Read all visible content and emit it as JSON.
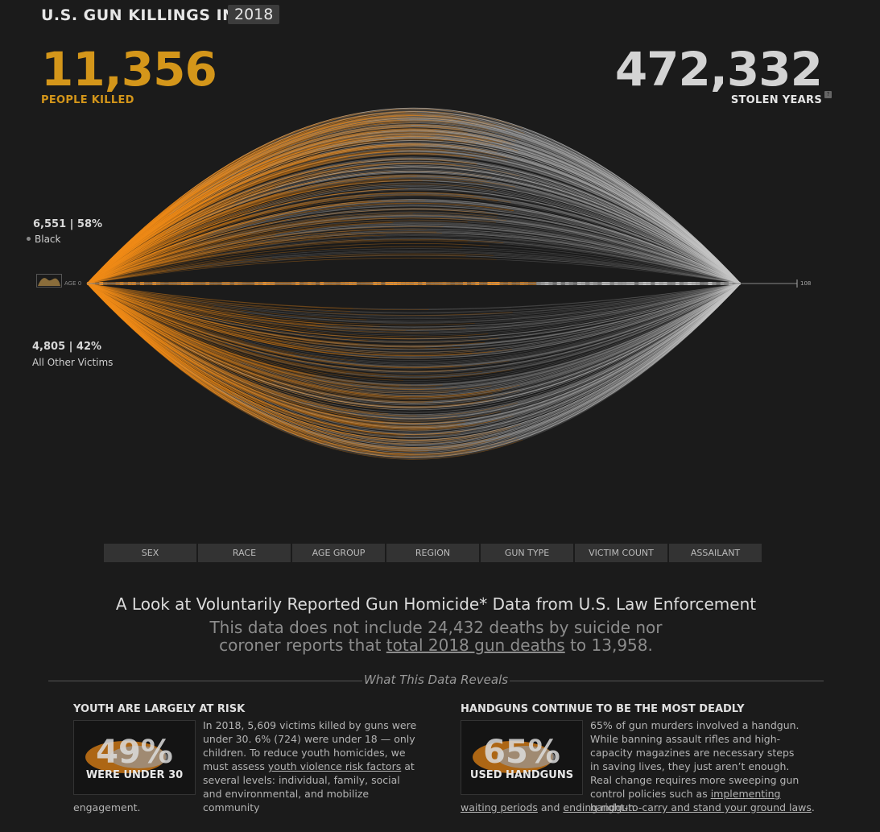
{
  "header": {
    "title": "U.S. GUN KILLINGS IN",
    "year": "2018",
    "killed_value": "11,356",
    "killed_label": "PEOPLE KILLED",
    "stolen_value": "472,332",
    "stolen_label": "STOLEN YEARS",
    "help_icon": "?"
  },
  "chart_data": {
    "type": "area",
    "axis": {
      "start_label": "AGE 0",
      "end_label": "108",
      "min": 0,
      "max": 108
    },
    "groups": [
      {
        "count_label": "6,551 | 58%",
        "name": "Black",
        "count": 6551,
        "percent": 58
      },
      {
        "count_label": "4,805 | 42%",
        "name": "All Other Victims",
        "count": 4805,
        "percent": 42
      }
    ],
    "colors": {
      "lived": "#f28c1a",
      "stolen": "#c8c8c8",
      "background": "#1b1b1b"
    }
  },
  "tabs": [
    "SEX",
    "RACE",
    "AGE GROUP",
    "REGION",
    "GUN TYPE",
    "VICTIM COUNT",
    "ASSAILANT"
  ],
  "intro": {
    "heading": "A Look at Voluntarily Reported Gun Homicide* Data from U.S. Law Enforcement",
    "sub_before": "This data does not include 24,432 deaths by suicide nor",
    "sub_line2_before": "coroner reports that ",
    "sub_link": "total 2018 gun deaths",
    "sub_after": " to 13,958."
  },
  "reveals_title": "What This Data Reveals",
  "columns": [
    {
      "title": "YOUTH ARE LARGELY AT RISK",
      "percent": "49%",
      "percent_label": "WERE UNDER 30",
      "text_before": "In 2018, 5,609 victims killed by guns were under 30. 6% (724) were under 18 — only children. To reduce youth homicides, we must assess ",
      "link1": "youth violence risk factors",
      "text_mid": " at several levels: individual, family, social and environmental, and mobilize community",
      "text_cont": "engagement."
    },
    {
      "title": "HANDGUNS CONTINUE TO BE THE MOST DEADLY",
      "percent": "65%",
      "percent_label": "USED HANDGUNS",
      "text_before": "65% of gun murders involved a handgun. While banning assault rifles and high-capacity magazines are necessary steps in saving lives, they just aren’t enough. Real change requires more sweeping gun control policies such as ",
      "link1": "implementing handgun",
      "link1_cont": "waiting periods",
      "text_and": " and ",
      "link2": "ending right-to-carry and stand your ground laws",
      "text_end": "."
    }
  ]
}
